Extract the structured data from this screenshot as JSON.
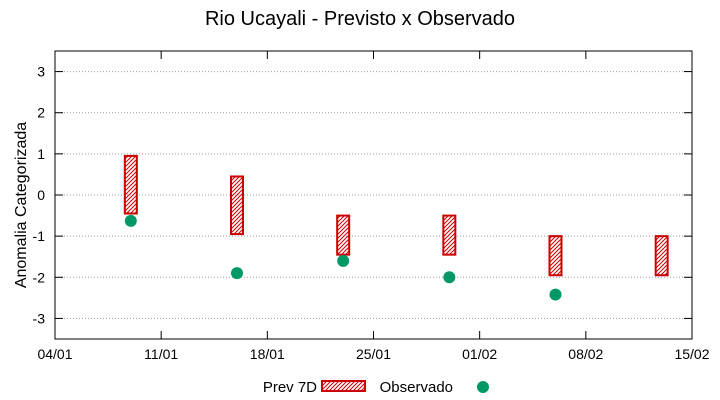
{
  "chart_data": {
    "type": "floating-bar-with-points",
    "title": "Rio Ucayali - Previsto x Observado",
    "xlabel": "",
    "ylabel": "Anomalia Categorizada",
    "x_ticks": [
      "04/01",
      "11/01",
      "18/01",
      "25/01",
      "01/02",
      "08/02",
      "15/02"
    ],
    "x_range_days": [
      0,
      42
    ],
    "ylim": [
      -3.5,
      3.5
    ],
    "y_ticks": [
      -3,
      -2,
      -1,
      0,
      1,
      2,
      3
    ],
    "grid": "horizontal-dotted",
    "legend_position": "bottom",
    "series": [
      {
        "name": "Prev 7D",
        "style": "hatched-box",
        "color": "#cc0000",
        "values": [
          {
            "x": "09/01",
            "low": -0.45,
            "high": 0.95
          },
          {
            "x": "16/01",
            "low": -0.95,
            "high": 0.45
          },
          {
            "x": "23/01",
            "low": -1.45,
            "high": -0.5
          },
          {
            "x": "30/01",
            "low": -1.45,
            "high": -0.5
          },
          {
            "x": "06/02",
            "low": -1.95,
            "high": -1.0
          },
          {
            "x": "13/02",
            "low": -1.95,
            "high": -1.0
          }
        ]
      },
      {
        "name": "Observado",
        "style": "point",
        "color": "#009966",
        "values": [
          {
            "x": "09/01",
            "y": -0.63
          },
          {
            "x": "16/01",
            "y": -1.9
          },
          {
            "x": "23/01",
            "y": -1.6
          },
          {
            "x": "30/01",
            "y": -2.0
          },
          {
            "x": "06/02",
            "y": -2.42
          }
        ]
      }
    ]
  }
}
